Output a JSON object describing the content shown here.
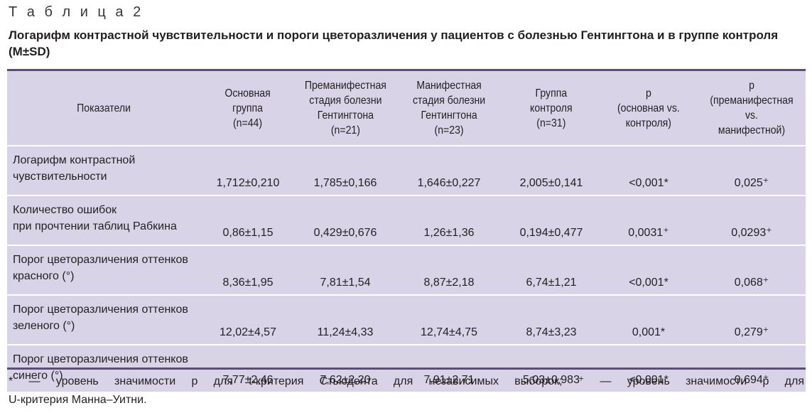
{
  "caption": "Т а б л и ц а   2",
  "title": "Логарифм контрастной чувствительности и пороги цветоразличения у пациентов с болезнью Гентингтона и в группе контроля (M±SD)",
  "table": {
    "headers": [
      [
        "Показатели"
      ],
      [
        "Основная",
        "группа",
        "(n=44)"
      ],
      [
        "Преманифестная",
        "стадия болезни",
        "Гентингтона",
        "(n=21)"
      ],
      [
        "Манифестная",
        "стадия болезни",
        "Гентингтона",
        "(n=23)"
      ],
      [
        "Группа",
        "контроля",
        "(n=31)"
      ],
      [
        "p",
        "(основная vs.",
        "контроля)"
      ],
      [
        "p",
        "(преманифестная vs.",
        "манифестной)"
      ]
    ],
    "rows": [
      {
        "label": [
          "Логарифм контрастной",
          "чувствительности"
        ],
        "values": [
          "1,712±0,210",
          "1,785±0,166",
          "1,646±0,227",
          "2,005±0,141",
          "<0,001*",
          "0,025⁺"
        ]
      },
      {
        "label": [
          "Количество ошибок",
          "при прочтении таблиц Рабкина"
        ],
        "values": [
          "0,86±1,15",
          "0,429±0,676",
          "1,26±1,36",
          "0,194±0,477",
          "0,0031⁺",
          "0,0293⁺"
        ]
      },
      {
        "label": [
          "Порог цветоразличения оттенков",
          "красного (°)"
        ],
        "values": [
          "8,36±1,95",
          "7,81±1,54",
          "8,87±2,18",
          "6,74±1,21",
          "<0,001*",
          "0,068⁺"
        ]
      },
      {
        "label": [
          "Порог цветоразличения оттенков",
          "зеленого (°)"
        ],
        "values": [
          "12,02±4,57",
          "11,24±4,33",
          "12,74±4,75",
          "8,74±3,23",
          "0,001*",
          "0,279⁺"
        ]
      },
      {
        "label": [
          "Порог цветоразличения оттенков",
          "синего (°)"
        ],
        "values": [
          "7,77±2,46",
          "7,62±2,20",
          "7,91±2,71",
          "5,03±0,983",
          "<0,001*",
          "0,694⁺"
        ]
      }
    ]
  },
  "footnote": {
    "line1": "* — уровень значимости p для t-критерия Стьюдента для независимых выборок; ⁺ — уровень значимости p для",
    "line2": "U-критерия Манна–Уитни."
  },
  "colors": {
    "table_bg": "#d8d3e6",
    "rule": "#5e4a7e"
  }
}
